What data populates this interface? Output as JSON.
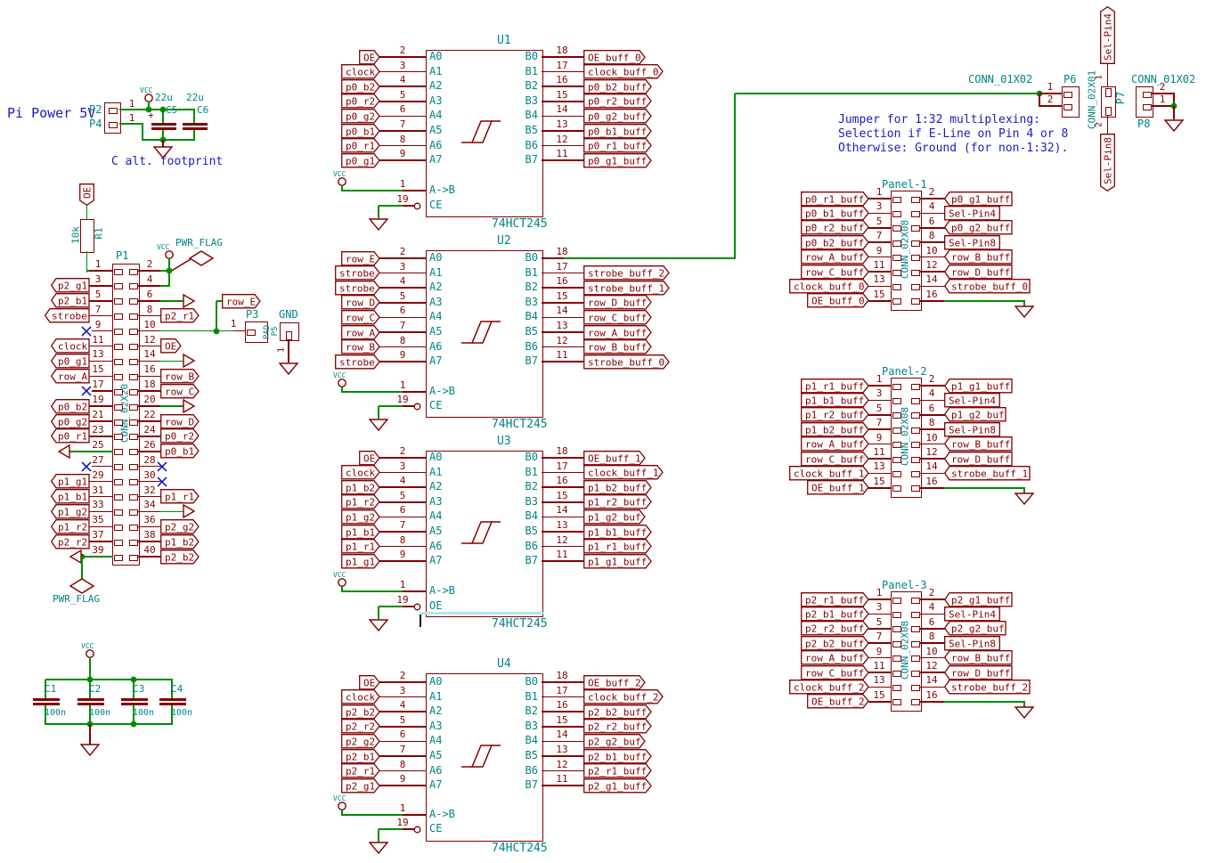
{
  "colors": {
    "wire": "#008C00",
    "outline": "#840000",
    "accent": "#008484",
    "note": "#1A1AC8",
    "nc": "#0000C8",
    "cursor": "#AEE8EC",
    "cursor_bar": "#111111"
  },
  "notes": {
    "pi_power": "Pi Power 5V",
    "c_alt": "C alt. footprint",
    "jumper": [
      "Jumper for 1:32 multiplexing:",
      "Selection if E-Line on Pin 4 or 8",
      "Otherwise: Ground (for non-1:32)."
    ]
  },
  "power_header": {
    "refs": [
      "P2",
      "P4"
    ],
    "pin_nums": [
      "1",
      "1"
    ],
    "vcc": "VCC",
    "plus": "+",
    "caps": [
      {
        "ref": "C5",
        "value": "22u"
      },
      {
        "ref": "C6",
        "value": "22u"
      }
    ]
  },
  "pullup": {
    "label": "OE",
    "ref": "R1",
    "value": "10k"
  },
  "pwr_flag_label": "PWR_FLAG",
  "p1": {
    "ref": "P1",
    "value": "CONN_02X20",
    "rows": [
      {
        "ln": "1",
        "lk": "r1",
        "rn": "2",
        "rk": "flag"
      },
      {
        "ln": "3",
        "lk": "lbl",
        "ll": "p2_g1",
        "rn": "4",
        "rk": "vwire"
      },
      {
        "ln": "5",
        "lk": "lbl",
        "ll": "p2_b1",
        "rn": "6",
        "rk": "gnd"
      },
      {
        "ln": "7",
        "lk": "lbl",
        "ll": "strobe",
        "rn": "8",
        "rk": "lbl",
        "rl": "p2_r1"
      },
      {
        "ln": "9",
        "lk": "nc",
        "rn": "10",
        "rk": "p3"
      },
      {
        "ln": "11",
        "lk": "lbl",
        "ll": "clock",
        "rn": "12",
        "rk": "lbl",
        "rl": "OE"
      },
      {
        "ln": "13",
        "lk": "lbl",
        "ll": "p0_g1",
        "rn": "14",
        "rk": "gnd"
      },
      {
        "ln": "15",
        "lk": "lbl",
        "ll": "row_A",
        "rn": "16",
        "rk": "lbl",
        "rl": "row_B"
      },
      {
        "ln": "17",
        "lk": "nc",
        "rn": "18",
        "rk": "lbl",
        "rl": "row_C"
      },
      {
        "ln": "19",
        "lk": "lbl",
        "ll": "p0_b2",
        "rn": "20",
        "rk": "gnd"
      },
      {
        "ln": "21",
        "lk": "lbl",
        "ll": "p0_g2",
        "rn": "22",
        "rk": "lbl",
        "rl": "row_D"
      },
      {
        "ln": "23",
        "lk": "lbl",
        "ll": "p0_r1",
        "rn": "24",
        "rk": "lbl",
        "rl": "p0_r2"
      },
      {
        "ln": "25",
        "lk": "gndl",
        "rn": "26",
        "rk": "lbl",
        "rl": "p0_b1"
      },
      {
        "ln": "27",
        "lk": "nc",
        "rn": "28",
        "rk": "nc"
      },
      {
        "ln": "29",
        "lk": "lbl",
        "ll": "p1_g1",
        "rn": "30",
        "rk": "nc"
      },
      {
        "ln": "31",
        "lk": "lbl",
        "ll": "p1_b1",
        "rn": "32",
        "rk": "lbl",
        "rl": "p1_r1"
      },
      {
        "ln": "33",
        "lk": "lbl",
        "ll": "p1_g2",
        "rn": "34",
        "rk": "gnd"
      },
      {
        "ln": "35",
        "lk": "lbl",
        "ll": "p1_r2",
        "rn": "36",
        "rk": "lbl",
        "rl": "p2_g2"
      },
      {
        "ln": "37",
        "lk": "lbl",
        "ll": "p2_r2",
        "rn": "38",
        "rk": "lbl",
        "rl": "p1_b2"
      },
      {
        "ln": "39",
        "lk": "gndflag",
        "rn": "40",
        "rk": "lbl",
        "rl": "p2_b2"
      }
    ]
  },
  "p3_group": {
    "row_label": "row_E",
    "p3_ref": "P3",
    "p3_value": "PAD",
    "p3_pin": "1",
    "aux_ref": "P5",
    "gnd_name": "GND",
    "gnd_pin": "1"
  },
  "decoupling": {
    "vcc": "VCC",
    "caps": [
      [
        "C1",
        "100n"
      ],
      [
        "C2",
        "100n"
      ],
      [
        "C3",
        "100n"
      ],
      [
        "C4",
        "100n"
      ]
    ]
  },
  "ic_common": {
    "a_pin_names": [
      "A0",
      "A1",
      "A2",
      "A3",
      "A4",
      "A5",
      "A6",
      "A7"
    ],
    "b_pin_names": [
      "B0",
      "B1",
      "B2",
      "B3",
      "B4",
      "B5",
      "B6",
      "B7"
    ],
    "a_nums": [
      "2",
      "3",
      "4",
      "5",
      "6",
      "7",
      "8",
      "9"
    ],
    "b_nums": [
      "18",
      "17",
      "16",
      "15",
      "14",
      "13",
      "12",
      "11"
    ],
    "dir_num": "1",
    "dir_name": "A->B",
    "en_num": "19",
    "vcc": "VCC"
  },
  "ics": [
    {
      "ref": "U1",
      "value": "74HCT245",
      "ce_name": "CE",
      "a": [
        "OE",
        "clock",
        "p0_b2",
        "p0_r2",
        "p0_g2",
        "p0_b1",
        "p0_r1",
        "p0_g1"
      ],
      "b": [
        "OE_buff_0",
        "clock_buff_0",
        "p0_b2_buff",
        "p0_r2_buff",
        "p0_g2_buff",
        "p0_b1_buff",
        "p0_r1_buff",
        "p0_g1_buff"
      ]
    },
    {
      "ref": "U2",
      "value": "74HCT245",
      "ce_name": "CE",
      "b0_wire": true,
      "a": [
        "row_E",
        "strobe",
        "strobe",
        "row_D",
        "row_C",
        "row_A",
        "row_B",
        "strobe"
      ],
      "b": [
        "",
        "strobe_buff_2",
        "strobe_buff_1",
        "row_D_buff",
        "row_C_buff",
        "row_A_buff",
        "row_B_buff",
        "strobe_buff_0"
      ]
    },
    {
      "ref": "U3",
      "value": "74HCT245",
      "ce_name": "OE",
      "cursor": true,
      "a": [
        "OE",
        "clock",
        "p1_b2",
        "p1_r2",
        "p1_g2",
        "p1_b1",
        "p1_r1",
        "p1_g1"
      ],
      "b": [
        "OE_buff_1",
        "clock_buff_1",
        "p1_b2_buff",
        "p1_r2_buff",
        "p1_g2_buf",
        "p1_b1_buff",
        "p1_r1_buff",
        "p1_g1_buff"
      ]
    },
    {
      "ref": "U4",
      "value": "74HCT245",
      "ce_name": "CE",
      "a": [
        "OE",
        "clock",
        "p2_b2",
        "p2_r2",
        "p2_g2",
        "p2_b1",
        "p2_r1",
        "p2_g1"
      ],
      "b": [
        "OE_buff_2",
        "clock_buff_2",
        "p2_b2_buff",
        "p2_r2_buff",
        "p2_g2_buf",
        "p2_b1_buff",
        "p2_r1_buff",
        "p2_g1_buff"
      ]
    }
  ],
  "panels": [
    {
      "title": "Panel-1",
      "value": "CONN_02X08",
      "left": [
        [
          "1",
          "p0_r1_buff"
        ],
        [
          "3",
          "p0_b1_buff"
        ],
        [
          "5",
          "p0_r2_buff"
        ],
        [
          "7",
          "p0_b2_buff"
        ],
        [
          "9",
          "row_A_buff"
        ],
        [
          "11",
          "row_C_buff"
        ],
        [
          "13",
          "clock_buff_0"
        ],
        [
          "15",
          "OE_buff_0"
        ]
      ],
      "right": [
        [
          "2",
          "p0_g1_buff",
          "pl"
        ],
        [
          "4",
          "Sel-Pin4",
          "rect"
        ],
        [
          "6",
          "p0_g2_buff",
          "pl"
        ],
        [
          "8",
          "Sel-Pin8",
          "rect"
        ],
        [
          "10",
          "row_B_buff",
          "pl"
        ],
        [
          "12",
          "row_D_buff",
          "pl"
        ],
        [
          "14",
          "strobe_buff_0",
          "pl"
        ],
        [
          "16",
          "",
          "gnd"
        ]
      ]
    },
    {
      "title": "Panel-2",
      "value": "CONN_02X08",
      "left": [
        [
          "1",
          "p1_r1_buff"
        ],
        [
          "3",
          "p1_b1_buff"
        ],
        [
          "5",
          "p1_r2_buff"
        ],
        [
          "7",
          "p1_b2_buff"
        ],
        [
          "9",
          "row_A_buff"
        ],
        [
          "11",
          "row_C_buff"
        ],
        [
          "13",
          "clock_buff_1"
        ],
        [
          "15",
          "OE_buff_1"
        ]
      ],
      "right": [
        [
          "2",
          "p1_g1_buff",
          "pl"
        ],
        [
          "4",
          "Sel-Pin4",
          "rect"
        ],
        [
          "6",
          "p1_g2_buf",
          "pl"
        ],
        [
          "8",
          "Sel-Pin8",
          "rect"
        ],
        [
          "10",
          "row_B_buff",
          "pl"
        ],
        [
          "12",
          "row_D_buff",
          "pl"
        ],
        [
          "14",
          "strobe_buff_1",
          "pl"
        ],
        [
          "16",
          "",
          "gnd"
        ]
      ]
    },
    {
      "title": "Panel-3",
      "value": "CONN_02X08",
      "left": [
        [
          "1",
          "p2_r1_buff"
        ],
        [
          "3",
          "p2_b1_buff"
        ],
        [
          "5",
          "p2_r2_buff"
        ],
        [
          "7",
          "p2_b2_buff"
        ],
        [
          "9",
          "row_A_buff"
        ],
        [
          "11",
          "row_C_buff"
        ],
        [
          "13",
          "clock_buff_2"
        ],
        [
          "15",
          "OE_buff_2"
        ]
      ],
      "right": [
        [
          "2",
          "p2_g1_buff",
          "pl"
        ],
        [
          "4",
          "Sel-Pin4",
          "rect"
        ],
        [
          "6",
          "p2_g2_buf",
          "pl"
        ],
        [
          "8",
          "Sel-Pin8",
          "rect"
        ],
        [
          "10",
          "row_B_buff",
          "pl"
        ],
        [
          "12",
          "row_D_buff",
          "pl"
        ],
        [
          "14",
          "strobe_buff_2",
          "pl"
        ],
        [
          "16",
          "",
          "gnd"
        ]
      ]
    }
  ],
  "top_right": {
    "p6": {
      "value": "CONN_01X02",
      "ref": "P6",
      "pin_nums": [
        "1",
        "2"
      ]
    },
    "p7": {
      "value": "CONN_02X01",
      "ref": "P7",
      "pin_nums": [
        "1",
        "2"
      ],
      "label_top": "Sel-Pin4",
      "label_bottom": "Sel-Pin8"
    },
    "p8": {
      "value": "CONN_01X02",
      "ref": "P8",
      "pin_nums": [
        "2",
        "1"
      ]
    }
  }
}
